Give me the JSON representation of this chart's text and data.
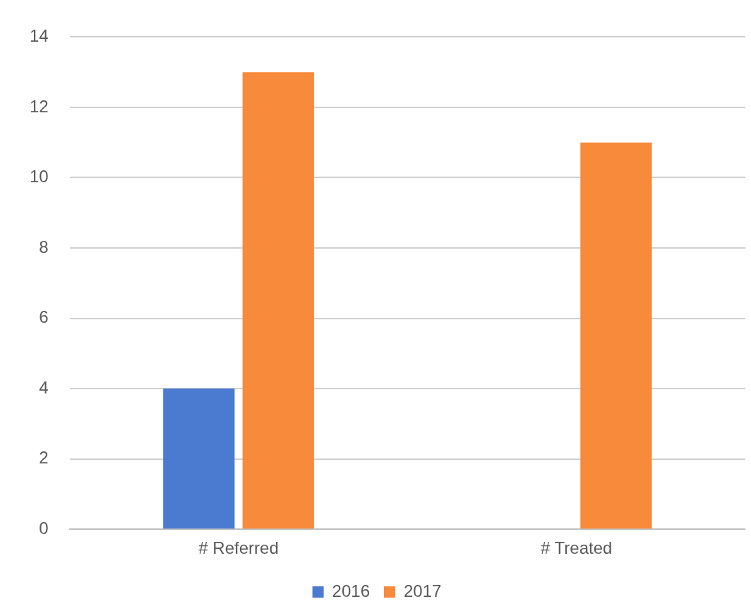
{
  "chart_data": {
    "type": "bar",
    "categories": [
      "# Referred",
      "# Treated"
    ],
    "series": [
      {
        "name": "2016",
        "color": "#4a7bd0",
        "values": [
          4,
          0
        ]
      },
      {
        "name": "2017",
        "color": "#f78a3b",
        "values": [
          13,
          11
        ]
      }
    ],
    "ylim": [
      0,
      14
    ],
    "yticks": [
      0,
      2,
      4,
      6,
      8,
      10,
      12,
      14
    ],
    "grid": "y",
    "legend": "bottom"
  }
}
